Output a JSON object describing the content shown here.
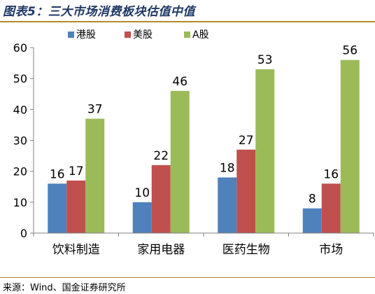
{
  "title": "图表5：三大市场消费板块估值中值",
  "source": "来源：Wind、国金证券研究所",
  "chart_data": {
    "type": "bar",
    "categories": [
      "饮料制造",
      "家用电器",
      "医药生物",
      "市场"
    ],
    "series": [
      {
        "name": "港股",
        "color": "#4f81bd",
        "values": [
          16,
          10,
          18,
          8
        ]
      },
      {
        "name": "美股",
        "color": "#c0504d",
        "values": [
          17,
          22,
          27,
          16
        ]
      },
      {
        "name": "A股",
        "color": "#9bbb59",
        "values": [
          37,
          46,
          53,
          56
        ]
      }
    ],
    "data_labels": [
      [
        "16",
        "10",
        "18",
        "8"
      ],
      [
        "17",
        "22",
        "27",
        "16"
      ],
      [
        "37",
        "46",
        "53",
        "56"
      ]
    ],
    "ylim": [
      0,
      60
    ],
    "yticks": [
      0,
      10,
      20,
      30,
      40,
      50,
      60
    ],
    "grid": false,
    "legend_position": "top"
  }
}
